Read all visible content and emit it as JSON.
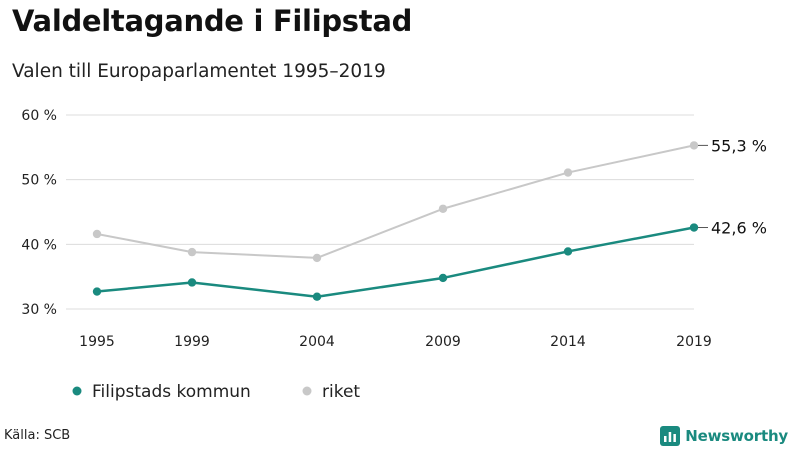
{
  "header": {
    "title": "Valdeltagande i Filipstad",
    "subtitle": "Valen till Europaparlamentet 1995–2019"
  },
  "footer": {
    "source": "Källa: SCB",
    "brand": "Newsworthy",
    "brand_color": "#1a8a7f"
  },
  "chart_data": {
    "type": "line",
    "title": "Valdeltagande i Filipstad",
    "subtitle": "Valen till Europaparlamentet 1995–2019",
    "xlabel": "",
    "ylabel": "",
    "x": [
      "1995",
      "1999",
      "2004",
      "2009",
      "2014",
      "2019"
    ],
    "ylim": [
      30,
      60
    ],
    "yticks": [
      30,
      40,
      50,
      60
    ],
    "ytick_labels": [
      "30 %",
      "40 %",
      "50 %",
      "60 %"
    ],
    "grid": true,
    "legend_position": "bottom-left",
    "series": [
      {
        "name": "Filipstads kommun",
        "color": "#1a8a7f",
        "values": [
          32.7,
          34.1,
          31.9,
          34.8,
          38.9,
          42.6
        ],
        "end_label": "42,6 %"
      },
      {
        "name": "riket",
        "color": "#c8c8c8",
        "values": [
          41.6,
          38.8,
          37.9,
          45.5,
          51.1,
          55.3
        ],
        "end_label": "55,3 %"
      }
    ]
  }
}
